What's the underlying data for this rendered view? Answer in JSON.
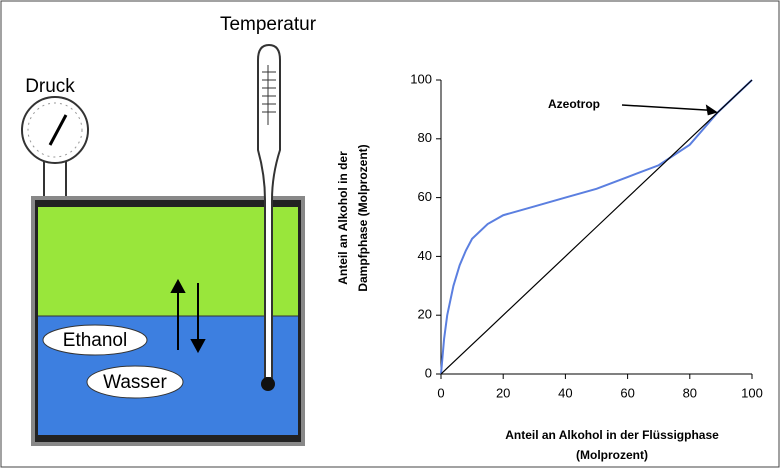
{
  "labels": {
    "pressure": "Druck",
    "temperature": "Temperatur",
    "ethanol": "Ethanol",
    "water": "Wasser"
  },
  "chart_data": {
    "type": "line",
    "x": [
      0,
      1,
      2,
      4,
      6,
      8,
      10,
      15,
      20,
      30,
      40,
      50,
      60,
      70,
      80,
      89,
      100
    ],
    "series": [
      {
        "color": "#5b7fe0",
        "values": [
          0,
          12,
          20,
          30,
          37,
          42,
          46,
          51,
          54,
          57,
          60,
          63,
          67,
          71,
          78,
          89,
          100
        ]
      },
      {
        "color": "#000000",
        "values": [
          0,
          1,
          2,
          4,
          6,
          8,
          10,
          15,
          20,
          30,
          40,
          50,
          60,
          70,
          80,
          89,
          100
        ]
      }
    ],
    "xlabel": [
      "Anteil an Alkohol in der Flüssigphase",
      "(Molprozent)"
    ],
    "ylabel": [
      "Anteil an Alkohol in der",
      "Dampfphase (Molprozent)"
    ],
    "annotation": {
      "text": "Azeotrop",
      "x": 89,
      "y": 89
    },
    "xlim": [
      0,
      100
    ],
    "xticks": [
      0,
      20,
      40,
      60,
      80,
      100
    ],
    "ylim": [
      0,
      100
    ],
    "yticks": [
      0,
      20,
      40,
      60,
      80,
      100
    ]
  }
}
